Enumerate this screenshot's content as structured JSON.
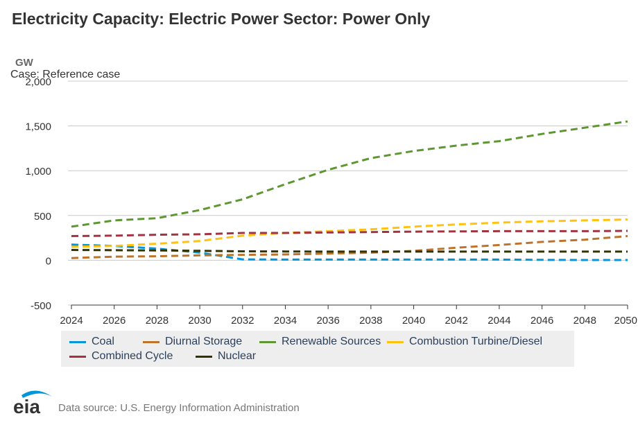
{
  "header": {
    "title": "Electricity Capacity: Electric Power Sector: Power Only",
    "unit": "GW",
    "case_label": "Case: Reference case"
  },
  "footer": {
    "logo_text": "eia",
    "source": "Data source: U.S. Energy Information Administration"
  },
  "chart_data": {
    "type": "line",
    "ylabel": "GW",
    "ylim": [
      -500,
      2000
    ],
    "xlim": [
      2024,
      2050
    ],
    "y_ticks": [
      "-500",
      "0",
      "500",
      "1,000",
      "1,500",
      "2,000"
    ],
    "y_tick_values": [
      -500,
      0,
      500,
      1000,
      1500,
      2000
    ],
    "x_ticks": [
      "2024",
      "2026",
      "2028",
      "2030",
      "2032",
      "2034",
      "2036",
      "2038",
      "2040",
      "2042",
      "2044",
      "2046",
      "2048",
      "2050"
    ],
    "x_tick_values": [
      2024,
      2026,
      2028,
      2030,
      2032,
      2034,
      2036,
      2038,
      2040,
      2042,
      2044,
      2046,
      2048,
      2050
    ],
    "grid": true,
    "legend_position": "bottom",
    "line_style": "dashed",
    "x": [
      2024,
      2026,
      2028,
      2030,
      2032,
      2034,
      2036,
      2038,
      2040,
      2042,
      2044,
      2046,
      2048,
      2050
    ],
    "series": [
      {
        "name": "Coal",
        "color": "#0096d7",
        "values": [
          175,
          160,
          130,
          85,
          10,
          8,
          8,
          8,
          8,
          8,
          8,
          5,
          3,
          3
        ]
      },
      {
        "name": "Diurnal Storage",
        "color": "#bd732a",
        "values": [
          25,
          40,
          45,
          55,
          60,
          65,
          75,
          85,
          105,
          140,
          170,
          205,
          230,
          270
        ]
      },
      {
        "name": "Renewable Sources",
        "color": "#5d9732",
        "values": [
          375,
          445,
          470,
          560,
          680,
          850,
          1010,
          1140,
          1220,
          1280,
          1330,
          1410,
          1480,
          1550
        ]
      },
      {
        "name": "Combustion Turbine/Diesel",
        "color": "#ffc20e",
        "values": [
          150,
          160,
          185,
          215,
          275,
          305,
          325,
          345,
          375,
          400,
          420,
          435,
          445,
          455
        ]
      },
      {
        "name": "Combined Cycle",
        "color": "#a33340",
        "values": [
          270,
          275,
          285,
          290,
          305,
          305,
          310,
          315,
          320,
          322,
          325,
          325,
          325,
          328
        ]
      },
      {
        "name": "Nuclear",
        "color": "#333300",
        "values": [
          115,
          112,
          110,
          105,
          100,
          98,
          97,
          97,
          97,
          97,
          97,
          97,
          97,
          97
        ]
      }
    ]
  }
}
